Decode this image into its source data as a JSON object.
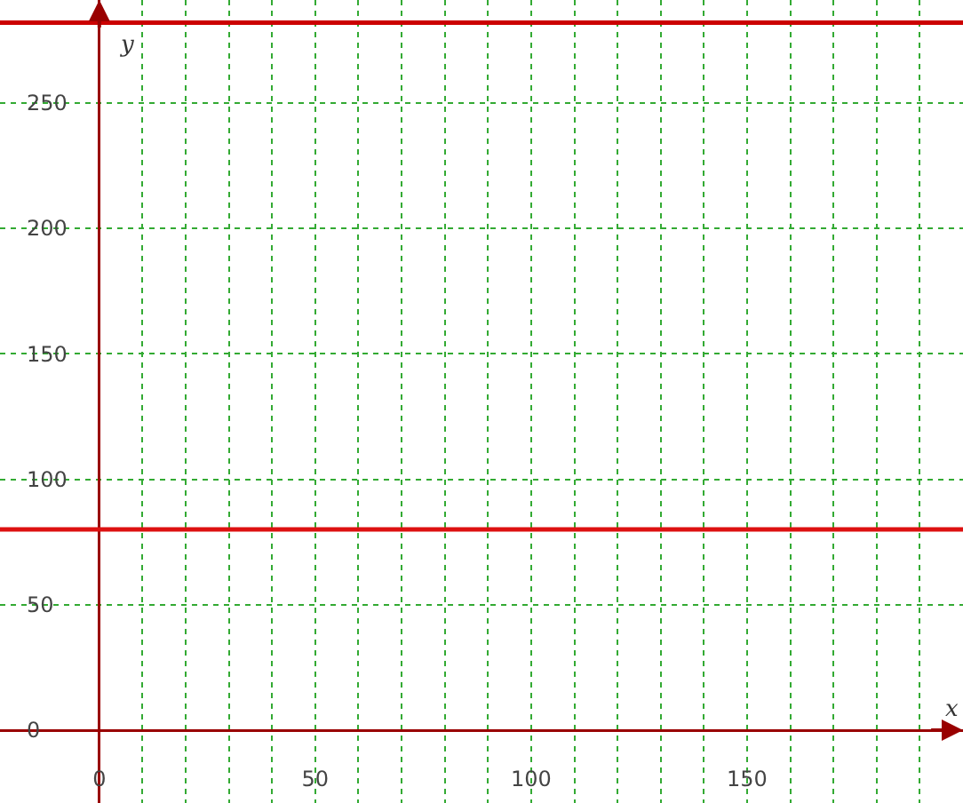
{
  "chart_data": {
    "type": "line",
    "xlabel": "x",
    "ylabel": "y",
    "ref_lines": [
      {
        "axis": "y",
        "value": 80,
        "color": "#dd1111"
      },
      {
        "axis": "y",
        "value": 282,
        "color": "#cc0000"
      }
    ],
    "xlim": [
      -23,
      200
    ],
    "ylim": [
      -29,
      291
    ],
    "xticks": [
      0,
      {
        "value": 10,
        "label": null
      },
      {
        "value": 20,
        "label": null
      },
      {
        "value": 30,
        "label": null
      },
      {
        "value": 40,
        "label": null
      },
      50,
      {
        "value": 60,
        "label": null
      },
      {
        "value": 70,
        "label": null
      },
      {
        "value": 80,
        "label": null
      },
      {
        "value": 90,
        "label": null
      },
      100,
      {
        "value": 110,
        "label": null
      },
      {
        "value": 120,
        "label": null
      },
      {
        "value": 130,
        "label": null
      },
      {
        "value": 140,
        "label": null
      },
      150,
      {
        "value": 160,
        "label": null
      },
      {
        "value": 170,
        "label": null
      },
      {
        "value": 180,
        "label": null
      },
      {
        "value": 190,
        "label": null
      }
    ],
    "yticks": [
      0,
      50,
      100,
      150,
      200,
      250
    ],
    "grid": true,
    "line_style": "solid"
  }
}
